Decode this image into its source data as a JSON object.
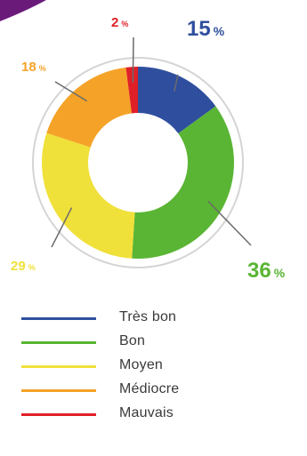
{
  "chart_data": {
    "type": "pie",
    "categories": [
      "Très bon",
      "Bon",
      "Moyen",
      "Médiocre",
      "Mauvais"
    ],
    "values": [
      15,
      36,
      29,
      18,
      2
    ],
    "value_labels": [
      "15",
      "36",
      "29",
      "18",
      "2"
    ],
    "unit": "%",
    "colors": [
      "#2f4f9e",
      "#5ab534",
      "#f0e03a",
      "#f4a328",
      "#e02027"
    ],
    "legend_position": "bottom"
  },
  "accent_corner_color": "#6a1b7a"
}
